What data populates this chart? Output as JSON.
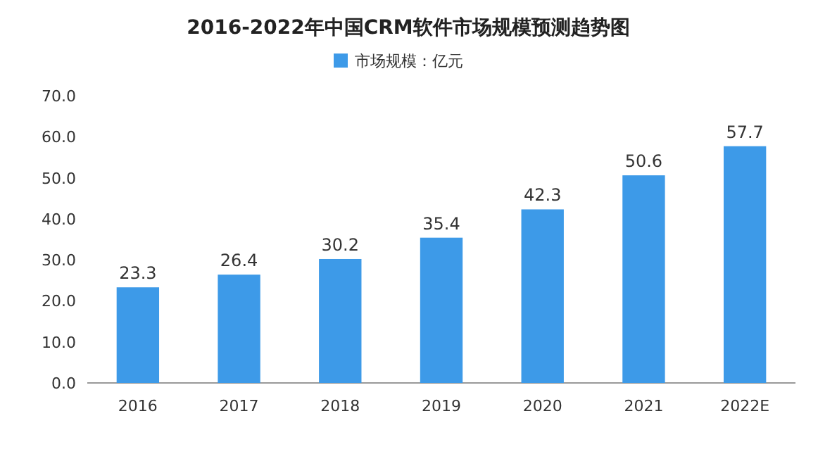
{
  "chart_data": {
    "type": "bar",
    "title": "2016-2022年中国CRM软件市场规模预测趋势图",
    "categories": [
      "2016",
      "2017",
      "2018",
      "2019",
      "2020",
      "2021",
      "2022E"
    ],
    "series": [
      {
        "name": "市场规模：亿元",
        "color": "#3d9ae8",
        "values": [
          23.3,
          26.4,
          30.2,
          35.4,
          42.3,
          50.6,
          57.7
        ]
      }
    ],
    "ylim": [
      0,
      70
    ],
    "yticks": [
      {
        "value": 0,
        "label": "0.0"
      },
      {
        "value": 10,
        "label": "10.0"
      },
      {
        "value": 20,
        "label": "20.0"
      },
      {
        "value": 30,
        "label": "30.0"
      },
      {
        "value": 40,
        "label": "40.0"
      },
      {
        "value": 50,
        "label": "50.0"
      },
      {
        "value": 60,
        "label": "60.0"
      },
      {
        "value": 70,
        "label": "70.0"
      }
    ],
    "data_labels": true,
    "legend": "top",
    "grid": false
  }
}
